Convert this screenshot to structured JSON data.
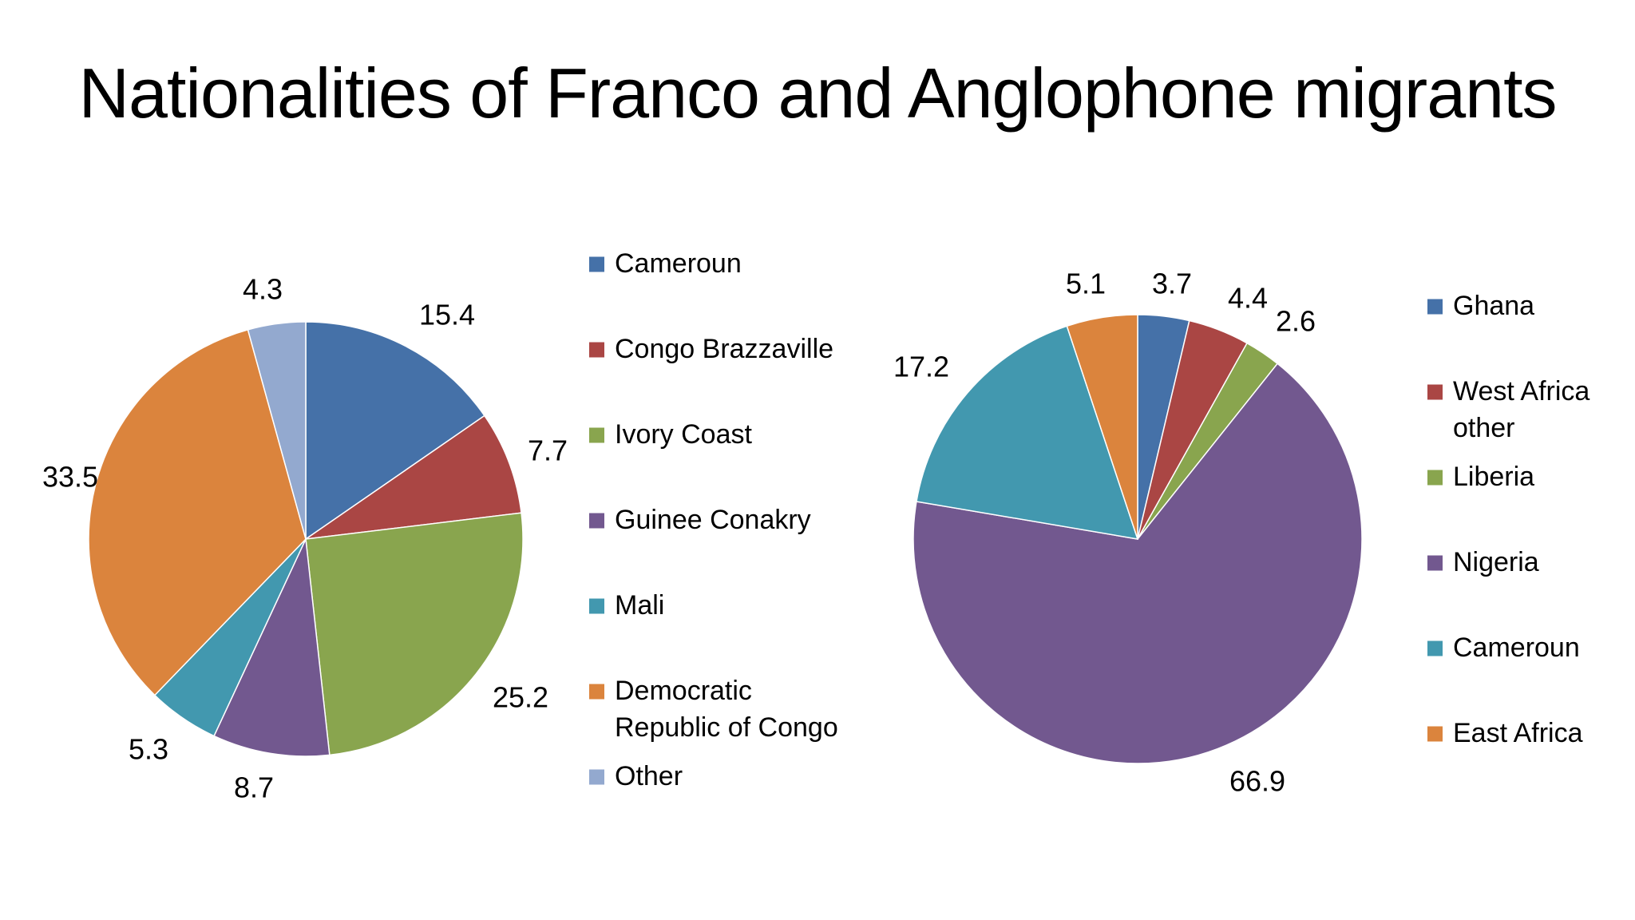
{
  "slide": {
    "title": "Nationalities of Franco and Anglophone migrants"
  },
  "chart_data": [
    {
      "type": "pie",
      "title": "",
      "start_angle_deg": 0,
      "direction": "clockwise",
      "legend_position": "right",
      "slices": [
        {
          "label": [
            "Cameroun"
          ],
          "value": 15.4,
          "color": "#4571A8"
        },
        {
          "label": [
            "Congo Brazzaville"
          ],
          "value": 7.7,
          "color": "#AA4644"
        },
        {
          "label": [
            "Ivory Coast"
          ],
          "value": 25.2,
          "color": "#89A54E"
        },
        {
          "label": [
            "Guinee Conakry"
          ],
          "value": 8.7,
          "color": "#72588F"
        },
        {
          "label": [
            "Mali"
          ],
          "value": 5.3,
          "color": "#4298AF"
        },
        {
          "label": [
            "Democratic",
            "Republic of Congo"
          ],
          "value": 33.5,
          "color": "#DB843D"
        },
        {
          "label": [
            "Other"
          ],
          "value": 4.3,
          "color": "#93A9CF"
        }
      ]
    },
    {
      "type": "pie",
      "title": "",
      "start_angle_deg": 0,
      "direction": "clockwise",
      "legend_position": "right",
      "slices": [
        {
          "label": [
            "Ghana"
          ],
          "value": 3.7,
          "color": "#4571A8"
        },
        {
          "label": [
            "West Africa",
            "other"
          ],
          "value": 4.4,
          "color": "#AA4644"
        },
        {
          "label": [
            "Liberia"
          ],
          "value": 2.6,
          "color": "#89A54E"
        },
        {
          "label": [
            "Nigeria"
          ],
          "value": 66.9,
          "color": "#72588F"
        },
        {
          "label": [
            "Cameroun"
          ],
          "value": 17.2,
          "color": "#4298AF"
        },
        {
          "label": [
            "East Africa"
          ],
          "value": 5.1,
          "color": "#DB843D"
        }
      ]
    }
  ]
}
